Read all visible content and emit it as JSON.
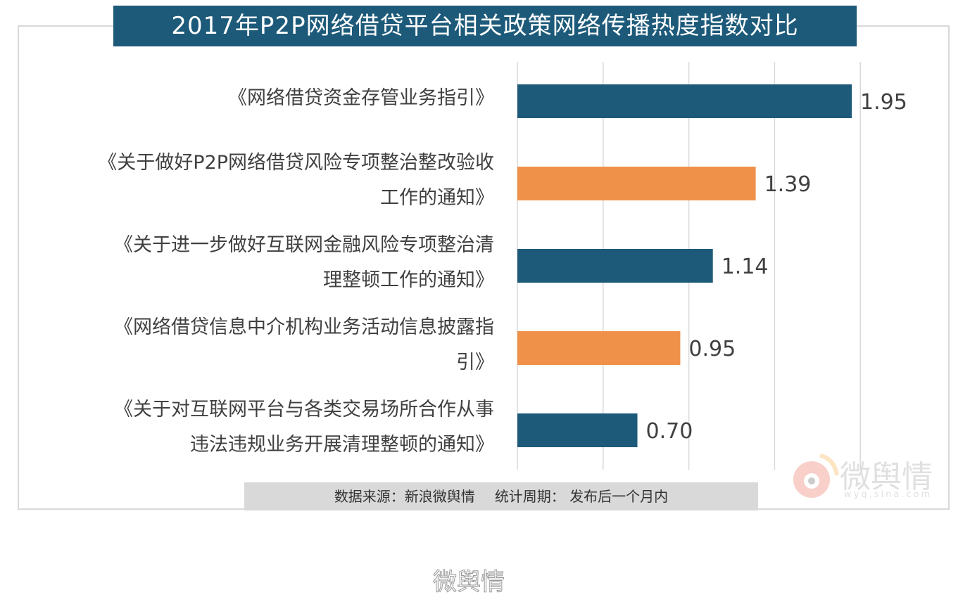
{
  "chart_data": {
    "type": "bar",
    "orientation": "horizontal",
    "title": "2017年P2P网络借贷平台相关政策网络传播热度指数对比",
    "categories": [
      "《网络借贷资金存管业务指引》",
      "《关于做好P2P网络借贷风险专项整治整改验收工作的通知》",
      "《关于进一步做好互联网金融风险专项整治清理整顿工作的通知》",
      "《网络借贷信息中介机构业务活动信息披露指引》",
      "《关于对互联网平台与各类交易场所合作从事违法违规业务开展清理整顿的通知》"
    ],
    "category_lines": [
      [
        "《网络借贷资金存管业务指引》"
      ],
      [
        "《关于做好P2P网络借贷风险专项整治整改验收",
        "工作的通知》"
      ],
      [
        "《关于进一步做好互联网金融风险专项整治清",
        "理整顿工作的通知》"
      ],
      [
        "《网络借贷信息中介机构业务活动信息披露指",
        "引》"
      ],
      [
        "《关于对互联网平台与各类交易场所合作从事",
        "违法违规业务开展清理整顿的通知》"
      ]
    ],
    "values": [
      1.95,
      1.39,
      1.14,
      0.95,
      0.7
    ],
    "value_labels": [
      "1.95",
      "1.39",
      "1.14",
      "0.95",
      "0.70"
    ],
    "bar_colors": [
      "#1d5a7a",
      "#f0914a",
      "#1d5a7a",
      "#f0914a",
      "#1d5a7a"
    ],
    "xlim": [
      0,
      2.5
    ],
    "gridlines": [
      0,
      0.5,
      1,
      1.5,
      2
    ],
    "grid": true,
    "xlabel": "",
    "ylabel": ""
  },
  "footer": {
    "source": "数据来源：新浪微舆情",
    "period": "统计周期： 发布后一个月内"
  },
  "watermark": {
    "brand": "微舆情",
    "url": "wyq.sina.com"
  }
}
